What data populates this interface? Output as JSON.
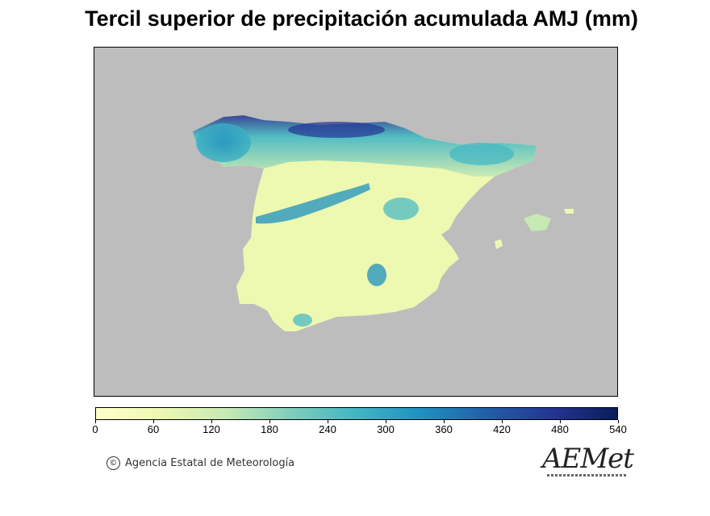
{
  "title": "Tercil superior de precipitación acumulada AMJ (mm)",
  "map": {
    "background_color": "#bdbdbd",
    "regions": [
      "Península Ibérica (España)",
      "Islas Baleares"
    ]
  },
  "legend": {
    "unit": "mm",
    "ticks": [
      "0",
      "60",
      "120",
      "180",
      "240",
      "300",
      "360",
      "420",
      "480",
      "540"
    ],
    "min": 0,
    "max": 540,
    "colors": [
      "#ffffcc",
      "#edf8b1",
      "#c7e9b4",
      "#7fcdbb",
      "#41b6c4",
      "#1d91c0",
      "#225ea8",
      "#253494",
      "#081d58"
    ]
  },
  "footer": {
    "copyright_symbol": "©",
    "agency": "Agencia Estatal de Meteorología"
  },
  "logo": {
    "text": "AEMet",
    "icon": "aemet-logo"
  }
}
